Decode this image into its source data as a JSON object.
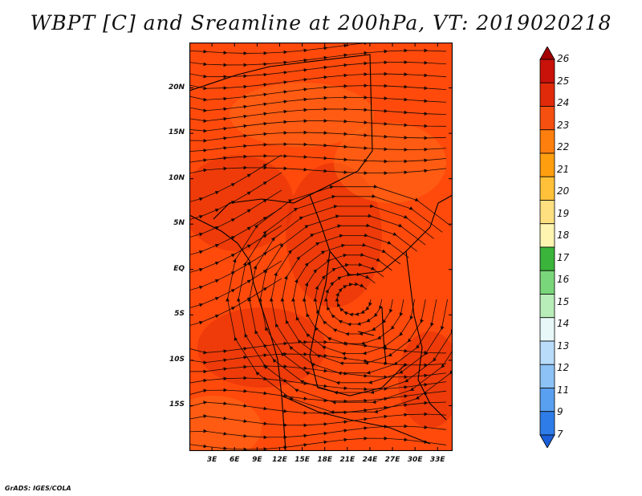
{
  "title": "WBPT [C] and Sreamline at 200hPa, VT: 2019020218",
  "footer": "GrADS: IGES/COLA",
  "map": {
    "lon_range": [
      0,
      35
    ],
    "lat_range": [
      -20,
      25
    ],
    "lat_ticks": [
      {
        "value": 20,
        "label": "20N"
      },
      {
        "value": 15,
        "label": "15N"
      },
      {
        "value": 10,
        "label": "10N"
      },
      {
        "value": 5,
        "label": "5N"
      },
      {
        "value": 0,
        "label": "EQ"
      },
      {
        "value": -5,
        "label": "5S"
      },
      {
        "value": -10,
        "label": "10S"
      },
      {
        "value": -15,
        "label": "15S"
      }
    ],
    "lon_ticks": [
      {
        "value": 3,
        "label": "3E"
      },
      {
        "value": 6,
        "label": "6E"
      },
      {
        "value": 9,
        "label": "9E"
      },
      {
        "value": 12,
        "label": "12E"
      },
      {
        "value": 15,
        "label": "15E"
      },
      {
        "value": 18,
        "label": "18E"
      },
      {
        "value": 21,
        "label": "21E"
      },
      {
        "value": 24,
        "label": "24E"
      },
      {
        "value": 27,
        "label": "27E"
      },
      {
        "value": 30,
        "label": "30E"
      },
      {
        "value": 33,
        "label": "33E"
      }
    ],
    "field_color_base": "#ff4a0c",
    "field_color_warm": "#e03007",
    "field_color_cool": "#ff6a18",
    "streamline_color": "#1a0a05",
    "boundary_color": "#000000"
  },
  "colorbar": {
    "levels": [
      "26",
      "25",
      "24",
      "23",
      "22",
      "21",
      "20",
      "19",
      "18",
      "17",
      "16",
      "15",
      "14",
      "13",
      "12",
      "11",
      "9",
      "7"
    ],
    "colors": [
      "#a50000",
      "#c8120a",
      "#e12a0a",
      "#f5500f",
      "#ff7f0e",
      "#ff9f10",
      "#ffc13a",
      "#ffe080",
      "#fff5b0",
      "#3ab43a",
      "#7ad67a",
      "#b8ecb8",
      "#e8f8f8",
      "#b8dcfa",
      "#8cc2f5",
      "#5aa0f0",
      "#2e7ce8",
      "#1a5fd8"
    ]
  }
}
